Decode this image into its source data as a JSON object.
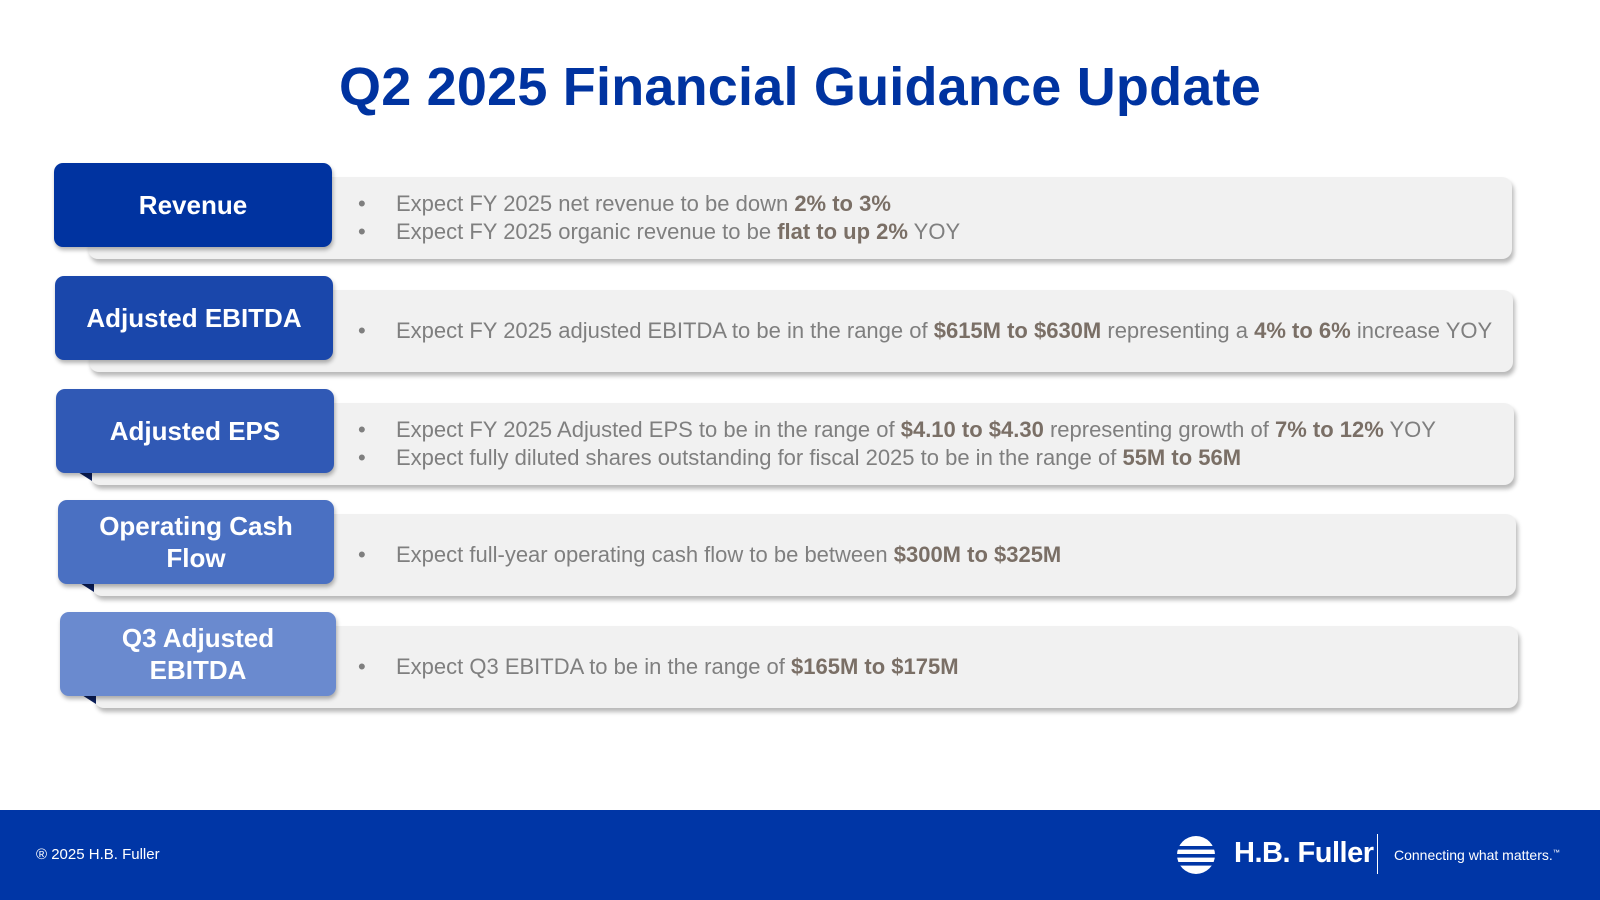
{
  "title": "Q2 2025 Financial Guidance Update",
  "colors": {
    "brand_blue": "#0033a0",
    "footer_blue": "#0036a6",
    "panel_gray": "#f1f1f1",
    "text_gray": "#7f7f7f",
    "bold_text": "#7a6f66"
  },
  "sections": [
    {
      "label": "Revenue",
      "tab_color": "#0033a0",
      "bullets": [
        [
          {
            "t": "Expect FY 2025 net revenue to be down "
          },
          {
            "t": "2% to 3%",
            "b": true
          }
        ],
        [
          {
            "t": "Expect FY 2025 organic revenue to be "
          },
          {
            "t": "flat to up 2%",
            "b": true
          },
          {
            "t": " YOY"
          }
        ]
      ]
    },
    {
      "label": "Adjusted EBITDA",
      "tab_color": "#1a47ab",
      "bullets": [
        [
          {
            "t": "Expect FY 2025 adjusted EBITDA to be in the range of "
          },
          {
            "t": "$615M to $630M",
            "b": true
          },
          {
            "t": " representing a "
          },
          {
            "t": "4% to 6%",
            "b": true
          },
          {
            "t": " increase YOY"
          }
        ]
      ]
    },
    {
      "label": "Adjusted EPS",
      "tab_color": "#3059b5",
      "bullets": [
        [
          {
            "t": "Expect FY 2025 Adjusted EPS to be in the range of "
          },
          {
            "t": "$4.10 to $4.30",
            "b": true
          },
          {
            "t": " representing growth of "
          },
          {
            "t": "7% to 12%",
            "b": true
          },
          {
            "t": " YOY"
          }
        ],
        [
          {
            "t": "Expect fully diluted shares outstanding for fiscal 2025 to be in the range of "
          },
          {
            "t": "55M to 56M",
            "b": true
          }
        ]
      ]
    },
    {
      "label": "Operating Cash Flow",
      "tab_color": "#4a70c2",
      "bullets": [
        [
          {
            "t": "Expect full-year operating cash flow to be between "
          },
          {
            "t": "$300M to $325M",
            "b": true
          }
        ]
      ]
    },
    {
      "label": "Q3 Adjusted EBITDA",
      "tab_color": "#6a8acf",
      "bullets": [
        [
          {
            "t": "Expect Q3 EBITDA to be in the range of "
          },
          {
            "t": "$165M to $175M",
            "b": true
          }
        ]
      ]
    }
  ],
  "footer": {
    "copyright": "® 2025 H.B. Fuller",
    "brand": "H.B. Fuller",
    "tagline": "Connecting what matters.",
    "tagline_mark": "™"
  }
}
